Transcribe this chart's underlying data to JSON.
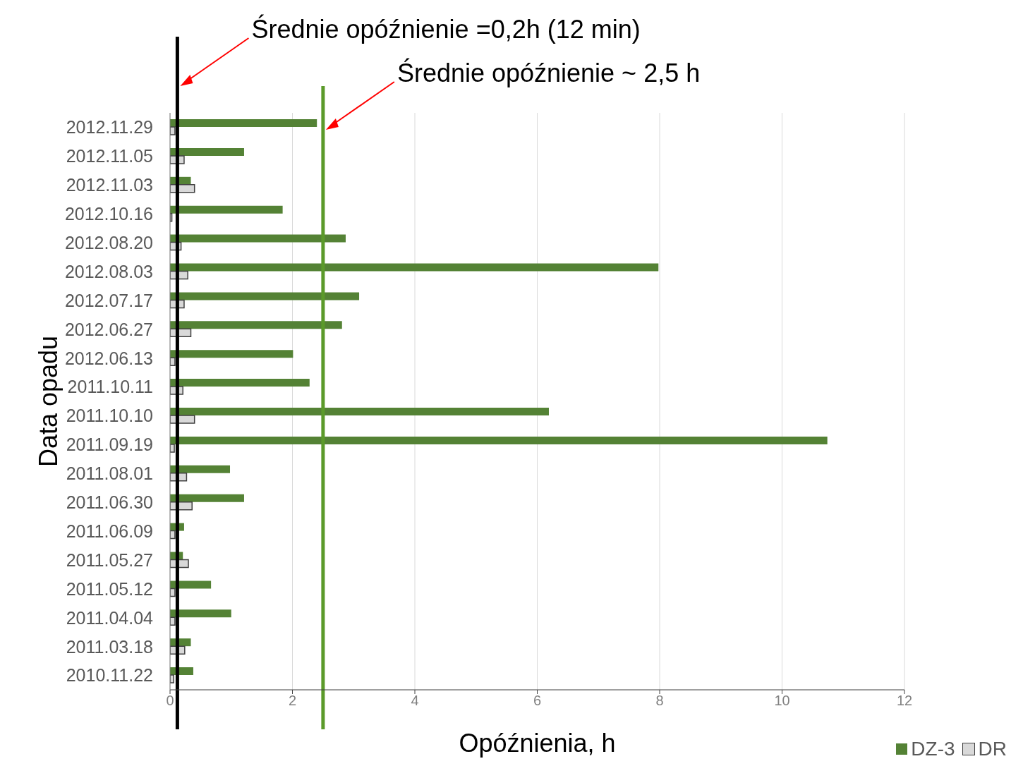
{
  "chart_data": {
    "type": "bar",
    "orientation": "horizontal",
    "xlabel": "Opóźnienia, h",
    "ylabel": "Data opadu",
    "categories": [
      "2012.11.29",
      "2012.11.05",
      "2012.11.03",
      "2012.10.16",
      "2012.08.20",
      "2012.08.03",
      "2012.07.17",
      "2012.06.27",
      "2012.06.13",
      "2011.10.11",
      "2011.10.10",
      "2011.09.19",
      "2011.08.01",
      "2011.06.30",
      "2011.06.09",
      "2011.05.27",
      "2011.05.12",
      "2011.04.04",
      "2011.03.18",
      "2010.11.22"
    ],
    "series": [
      {
        "name": "DZ-3",
        "color": "#548235",
        "values": [
          2.4,
          1.21,
          0.34,
          1.84,
          2.87,
          7.98,
          3.09,
          2.81,
          2.01,
          2.28,
          6.19,
          10.74,
          0.98,
          1.21,
          0.23,
          0.21,
          0.67,
          1.0,
          0.34,
          0.38
        ]
      },
      {
        "name": "DR",
        "color": "#d9d9d9",
        "values": [
          0.08,
          0.23,
          0.4,
          0.03,
          0.18,
          0.29,
          0.23,
          0.34,
          0.08,
          0.21,
          0.4,
          0.07,
          0.27,
          0.36,
          0.08,
          0.3,
          0.08,
          0.08,
          0.24,
          0.06
        ]
      }
    ],
    "xlim": [
      0,
      12
    ],
    "xticks": [
      0,
      2,
      4,
      6,
      8,
      10,
      12
    ],
    "grid": "x",
    "legend": "bottom right",
    "ref_lines": [
      {
        "axis": "x",
        "value": 0.12,
        "label": "Średnie opóźnienie =0,2h (12 min)",
        "color": "#000000"
      },
      {
        "axis": "x",
        "value": 2.5,
        "label": "Średnie opóźnienie ~ 2,5 h",
        "color": "#5b9a2a"
      }
    ]
  }
}
